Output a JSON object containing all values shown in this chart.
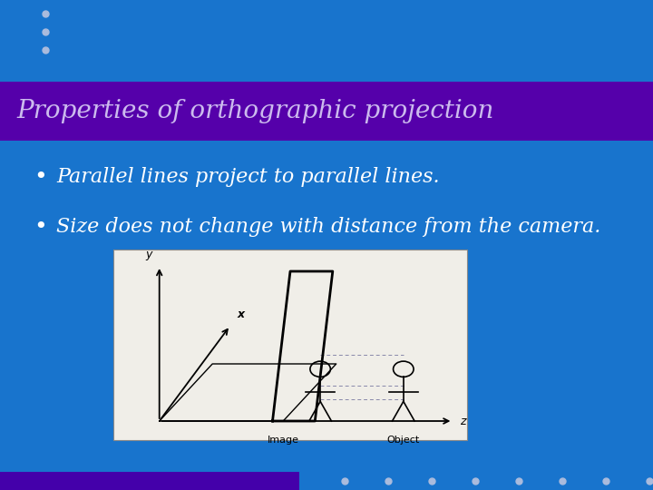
{
  "bg_color": "#1874CD",
  "title_bg_color": "#5500AA",
  "title_text": "Properties of orthographic projection",
  "title_text_color": "#CCBBEE",
  "title_fontsize": 20,
  "bullet1": "Parallel lines project to parallel lines.",
  "bullet2": "Size does not change with distance from the camera.",
  "bullet_fontsize": 16,
  "bullet_color": "#FFFFFF",
  "dots_color": "#AABBDD",
  "bottom_bar_color": "#4400AA",
  "fig_width": 7.2,
  "fig_height": 5.4,
  "dpi": 100
}
